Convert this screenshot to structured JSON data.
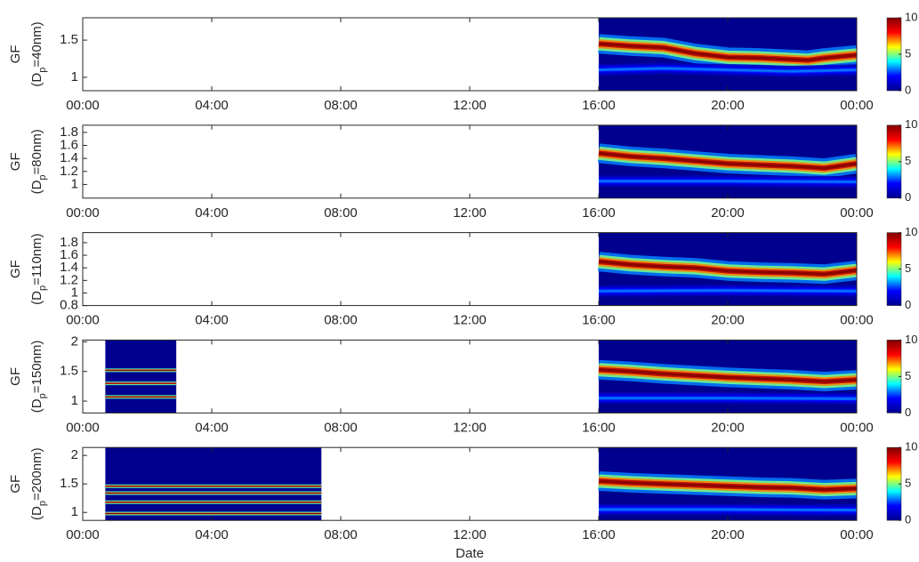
{
  "chart_data": [
    {
      "type": "heatmap",
      "ylabel": "GF",
      "ylabel2": [
        "(D",
        "p",
        "=40nm)"
      ],
      "xlim": [
        0,
        24
      ],
      "xticks": [
        {
          "value": 0,
          "label": "00:00"
        },
        {
          "value": 4,
          "label": "04:00"
        },
        {
          "value": 8,
          "label": "08:00"
        },
        {
          "value": 12,
          "label": "12:00"
        },
        {
          "value": 16,
          "label": "16:00"
        },
        {
          "value": 20,
          "label": "20:00"
        },
        {
          "value": 24,
          "label": "00:00"
        }
      ],
      "ylim": [
        0.82,
        1.8
      ],
      "yticks": [
        1,
        1.5
      ],
      "clim": [
        0,
        10
      ],
      "cticks": [
        0,
        5,
        10
      ],
      "colormap": [
        "#00008f",
        "#0000ff",
        "#00ffff",
        "#ffff00",
        "#ff0000",
        "#800000"
      ],
      "data_range": [
        16,
        24
      ],
      "ridges": [
        {
          "x": [
            16,
            17,
            18,
            19,
            20,
            21,
            22,
            22.5,
            23,
            24
          ],
          "values": [
            1.45,
            1.42,
            1.4,
            1.32,
            1.27,
            1.26,
            1.24,
            1.23,
            1.26,
            1.3
          ],
          "intensity": 10
        },
        {
          "x": [
            16,
            18,
            20,
            22,
            24
          ],
          "values": [
            1.1,
            1.12,
            1.1,
            1.08,
            1.1
          ],
          "intensity": 3
        }
      ],
      "blocks": []
    },
    {
      "type": "heatmap",
      "ylabel": "GF",
      "ylabel2": [
        "(D",
        "p",
        "=80nm)"
      ],
      "xlim": [
        0,
        24
      ],
      "xticks": [
        {
          "value": 0,
          "label": "00:00"
        },
        {
          "value": 4,
          "label": "04:00"
        },
        {
          "value": 8,
          "label": "08:00"
        },
        {
          "value": 12,
          "label": "12:00"
        },
        {
          "value": 16,
          "label": "16:00"
        },
        {
          "value": 20,
          "label": "20:00"
        },
        {
          "value": 24,
          "label": "00:00"
        }
      ],
      "ylim": [
        0.79,
        1.91
      ],
      "yticks": [
        1,
        1.2,
        1.4,
        1.6,
        1.8
      ],
      "clim": [
        0,
        10
      ],
      "cticks": [
        0,
        5,
        10
      ],
      "colormap": [
        "#00008f",
        "#0000ff",
        "#00ffff",
        "#ffff00",
        "#ff0000",
        "#800000"
      ],
      "data_range": [
        16,
        24
      ],
      "ridges": [
        {
          "x": [
            16,
            17,
            18,
            19,
            20,
            21,
            22,
            23,
            24
          ],
          "values": [
            1.48,
            1.43,
            1.4,
            1.36,
            1.32,
            1.3,
            1.28,
            1.25,
            1.32
          ],
          "intensity": 10
        },
        {
          "x": [
            16,
            20,
            24
          ],
          "values": [
            1.05,
            1.05,
            1.04
          ],
          "intensity": 3
        }
      ],
      "blocks": []
    },
    {
      "type": "heatmap",
      "ylabel": "GF",
      "ylabel2": [
        "(D",
        "p",
        "=110nm)"
      ],
      "xlim": [
        0,
        24
      ],
      "xticks": [
        {
          "value": 0,
          "label": "00:00"
        },
        {
          "value": 4,
          "label": "04:00"
        },
        {
          "value": 8,
          "label": "08:00"
        },
        {
          "value": 12,
          "label": "12:00"
        },
        {
          "value": 16,
          "label": "16:00"
        },
        {
          "value": 20,
          "label": "20:00"
        },
        {
          "value": 24,
          "label": "00:00"
        }
      ],
      "ylim": [
        0.8,
        1.96
      ],
      "yticks": [
        0.8,
        1,
        1.2,
        1.4,
        1.6,
        1.8
      ],
      "clim": [
        0,
        10
      ],
      "cticks": [
        0,
        5,
        10
      ],
      "colormap": [
        "#00008f",
        "#0000ff",
        "#00ffff",
        "#ffff00",
        "#ff0000",
        "#800000"
      ],
      "data_range": [
        16,
        24
      ],
      "ridges": [
        {
          "x": [
            16,
            17,
            18,
            19,
            20,
            21,
            22,
            23,
            24
          ],
          "values": [
            1.5,
            1.45,
            1.42,
            1.4,
            1.35,
            1.33,
            1.32,
            1.3,
            1.36
          ],
          "intensity": 10
        },
        {
          "x": [
            16,
            20,
            24
          ],
          "values": [
            1.03,
            1.04,
            1.03
          ],
          "intensity": 3
        }
      ],
      "blocks": []
    },
    {
      "type": "heatmap",
      "ylabel": "GF",
      "ylabel2": [
        "(D",
        "p",
        "=150nm)"
      ],
      "xlim": [
        0,
        24
      ],
      "xticks": [
        {
          "value": 0,
          "label": "00:00"
        },
        {
          "value": 4,
          "label": "04:00"
        },
        {
          "value": 8,
          "label": "08:00"
        },
        {
          "value": 12,
          "label": "12:00"
        },
        {
          "value": 16,
          "label": "16:00"
        },
        {
          "value": 20,
          "label": "20:00"
        },
        {
          "value": 24,
          "label": "00:00"
        }
      ],
      "ylim": [
        0.8,
        2.03
      ],
      "yticks": [
        1,
        1.5,
        2
      ],
      "clim": [
        0,
        10
      ],
      "cticks": [
        0,
        5,
        10
      ],
      "colormap": [
        "#00008f",
        "#0000ff",
        "#00ffff",
        "#ffff00",
        "#ff0000",
        "#800000"
      ],
      "data_range": [
        16,
        24
      ],
      "ridges": [
        {
          "x": [
            16,
            17,
            18,
            19,
            20,
            21,
            22,
            23,
            24
          ],
          "values": [
            1.53,
            1.5,
            1.46,
            1.43,
            1.4,
            1.38,
            1.36,
            1.33,
            1.36
          ],
          "intensity": 10
        },
        {
          "x": [
            16,
            20,
            24
          ],
          "values": [
            1.05,
            1.05,
            1.04
          ],
          "intensity": 3
        }
      ],
      "blocks": [
        {
          "x": [
            0.7,
            2.9
          ],
          "lines": [
            1.52,
            1.3,
            1.07
          ]
        }
      ]
    },
    {
      "type": "heatmap",
      "ylabel": "GF",
      "ylabel2": [
        "(D",
        "p",
        "=200nm)"
      ],
      "xlabel": "Date",
      "xlim": [
        0,
        24
      ],
      "xticks": [
        {
          "value": 0,
          "label": "00:00"
        },
        {
          "value": 4,
          "label": "04:00"
        },
        {
          "value": 8,
          "label": "08:00"
        },
        {
          "value": 12,
          "label": "12:00"
        },
        {
          "value": 16,
          "label": "16:00"
        },
        {
          "value": 20,
          "label": "20:00"
        },
        {
          "value": 24,
          "label": "00:00"
        }
      ],
      "ylim": [
        0.86,
        2.14
      ],
      "yticks": [
        1,
        1.5,
        2
      ],
      "clim": [
        0,
        10
      ],
      "cticks": [
        0,
        5,
        10
      ],
      "colormap": [
        "#00008f",
        "#0000ff",
        "#00ffff",
        "#ffff00",
        "#ff0000",
        "#800000"
      ],
      "data_range": [
        16,
        24
      ],
      "ridges": [
        {
          "x": [
            16,
            17,
            18,
            19,
            20,
            21,
            22,
            23,
            24
          ],
          "values": [
            1.55,
            1.52,
            1.5,
            1.48,
            1.46,
            1.44,
            1.43,
            1.4,
            1.42
          ],
          "intensity": 10
        },
        {
          "x": [
            16,
            20,
            24
          ],
          "values": [
            1.05,
            1.05,
            1.04
          ],
          "intensity": 3
        }
      ],
      "blocks": [
        {
          "x": [
            0.7,
            7.4
          ],
          "lines": [
            1.46,
            1.34,
            1.18,
            0.98
          ]
        }
      ]
    }
  ]
}
